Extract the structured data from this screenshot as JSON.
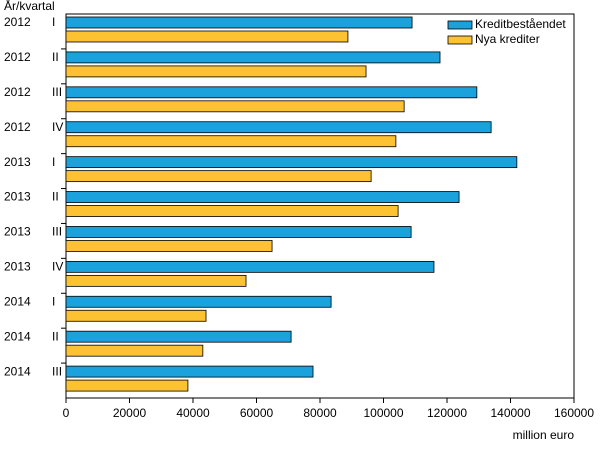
{
  "chart_data": {
    "type": "bar",
    "orientation": "horizontal",
    "y_axis_label": "År/kvartal",
    "x_axis_label": "million euro",
    "categories": [
      "2012 I",
      "2012 II",
      "2012 III",
      "2012 IV",
      "2013 I",
      "2013 II",
      "2013 III",
      "2013 IV",
      "2014 I",
      "2014 II",
      "2014 III"
    ],
    "series": [
      {
        "name": "Kreditbeståendet",
        "color": "#1ba1dc",
        "values": [
          109000,
          117800,
          129400,
          133900,
          142000,
          123800,
          108700,
          115900,
          83500,
          70900,
          77800
        ]
      },
      {
        "name": "Nya krediter",
        "color": "#fcc232",
        "values": [
          88800,
          94500,
          106500,
          103900,
          96100,
          104600,
          64900,
          56700,
          44100,
          43100,
          38400
        ]
      }
    ],
    "xlim": [
      0,
      160000
    ],
    "xticks": [
      0,
      20000,
      40000,
      60000,
      80000,
      100000,
      120000,
      140000,
      160000
    ],
    "legend": "top-right"
  }
}
